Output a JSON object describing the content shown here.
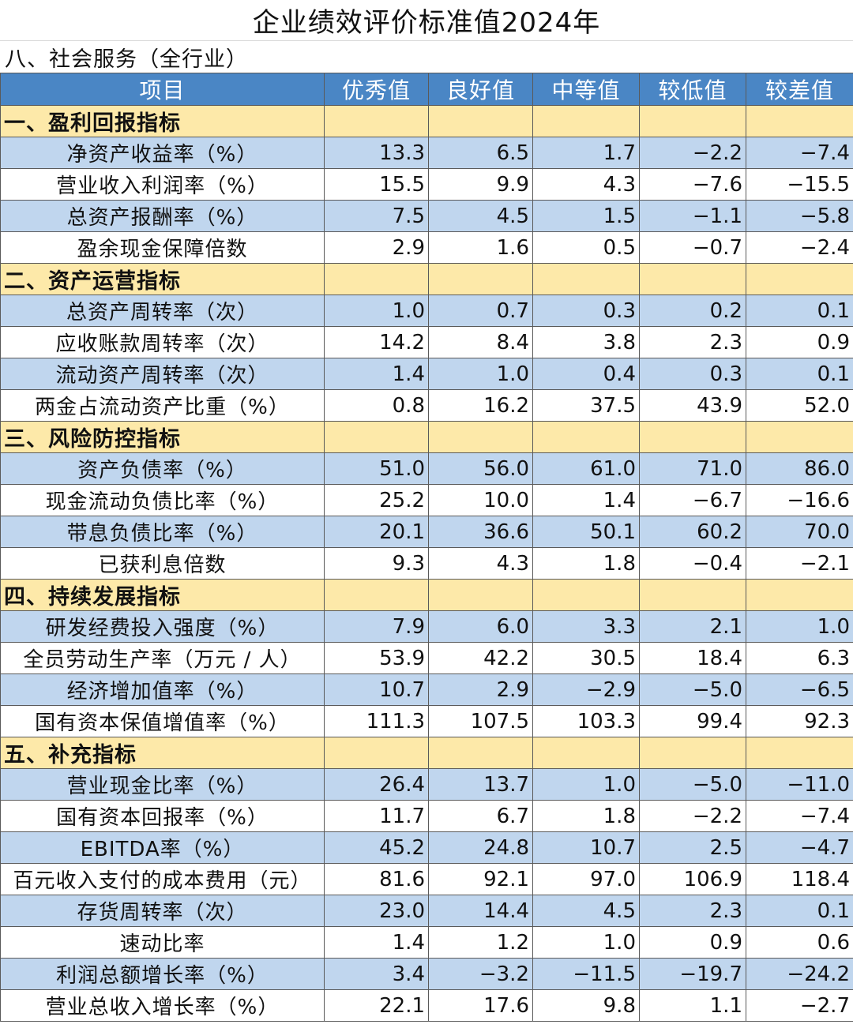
{
  "title": "企业绩效评价标准值2024年",
  "subtitle": "八、社会服务（全行业）",
  "headers": [
    "项目",
    "优秀值",
    "良好值",
    "中等值",
    "较低值",
    "较差值"
  ],
  "sections": [
    {
      "name": "一、盈利回报指标",
      "rows": [
        {
          "label": "净资产收益率（%）",
          "values": [
            "13.3",
            "6.5",
            "1.7",
            "−2.2",
            "−7.4"
          ]
        },
        {
          "label": "营业收入利润率（%）",
          "values": [
            "15.5",
            "9.9",
            "4.3",
            "−7.6",
            "−15.5"
          ]
        },
        {
          "label": "总资产报酬率（%）",
          "values": [
            "7.5",
            "4.5",
            "1.5",
            "−1.1",
            "−5.8"
          ]
        },
        {
          "label": "盈余现金保障倍数",
          "values": [
            "2.9",
            "1.6",
            "0.5",
            "−0.7",
            "−2.4"
          ]
        }
      ]
    },
    {
      "name": "二、资产运营指标",
      "rows": [
        {
          "label": "总资产周转率（次）",
          "values": [
            "1.0",
            "0.7",
            "0.3",
            "0.2",
            "0.1"
          ]
        },
        {
          "label": "应收账款周转率（次）",
          "values": [
            "14.2",
            "8.4",
            "3.8",
            "2.3",
            "0.9"
          ]
        },
        {
          "label": "流动资产周转率（次）",
          "values": [
            "1.4",
            "1.0",
            "0.4",
            "0.3",
            "0.1"
          ]
        },
        {
          "label": "两金占流动资产比重（%）",
          "values": [
            "0.8",
            "16.2",
            "37.5",
            "43.9",
            "52.0"
          ]
        }
      ]
    },
    {
      "name": "三、风险防控指标",
      "rows": [
        {
          "label": "资产负债率（%）",
          "values": [
            "51.0",
            "56.0",
            "61.0",
            "71.0",
            "86.0"
          ]
        },
        {
          "label": "现金流动负债比率（%）",
          "values": [
            "25.2",
            "10.0",
            "1.4",
            "−6.7",
            "−16.6"
          ]
        },
        {
          "label": "带息负债比率（%）",
          "values": [
            "20.1",
            "36.6",
            "50.1",
            "60.2",
            "70.0"
          ]
        },
        {
          "label": "已获利息倍数",
          "values": [
            "9.3",
            "4.3",
            "1.8",
            "−0.4",
            "−2.1"
          ]
        }
      ]
    },
    {
      "name": "四、持续发展指标",
      "rows": [
        {
          "label": "研发经费投入强度（%）",
          "values": [
            "7.9",
            "6.0",
            "3.3",
            "2.1",
            "1.0"
          ]
        },
        {
          "label": "全员劳动生产率（万元 / 人）",
          "values": [
            "53.9",
            "42.2",
            "30.5",
            "18.4",
            "6.3"
          ]
        },
        {
          "label": "经济增加值率（%）",
          "values": [
            "10.7",
            "2.9",
            "−2.9",
            "−5.0",
            "−6.5"
          ]
        },
        {
          "label": "国有资本保值增值率（%）",
          "values": [
            "111.3",
            "107.5",
            "103.3",
            "99.4",
            "92.3"
          ]
        }
      ]
    },
    {
      "name": "五、补充指标",
      "rows": [
        {
          "label": "营业现金比率（%）",
          "values": [
            "26.4",
            "13.7",
            "1.0",
            "−5.0",
            "−11.0"
          ]
        },
        {
          "label": "国有资本回报率（%）",
          "values": [
            "11.7",
            "6.7",
            "1.8",
            "−2.2",
            "−7.4"
          ]
        },
        {
          "label": "EBITDA率（%）",
          "values": [
            "45.2",
            "24.8",
            "10.7",
            "2.5",
            "−4.7"
          ]
        },
        {
          "label": "百元收入支付的成本费用（元）",
          "values": [
            "81.6",
            "92.1",
            "97.0",
            "106.9",
            "118.4"
          ]
        },
        {
          "label": "存货周转率（次）",
          "values": [
            "23.0",
            "14.4",
            "4.5",
            "2.3",
            "0.1"
          ]
        },
        {
          "label": "速动比率",
          "values": [
            "1.4",
            "1.2",
            "1.0",
            "0.9",
            "0.6"
          ]
        },
        {
          "label": "利润总额增长率（%）",
          "values": [
            "3.4",
            "−3.2",
            "−11.5",
            "−19.7",
            "−24.2"
          ]
        },
        {
          "label": "营业总收入增长率（%）",
          "values": [
            "22.1",
            "17.6",
            "9.8",
            "1.1",
            "−2.7"
          ]
        }
      ]
    }
  ],
  "colors": {
    "header_bg": "#4a86c5",
    "section_bg": "#fde9a9",
    "row_blue": "#c0d6ee",
    "row_white": "#ffffff",
    "border": "#5a5a5a"
  }
}
